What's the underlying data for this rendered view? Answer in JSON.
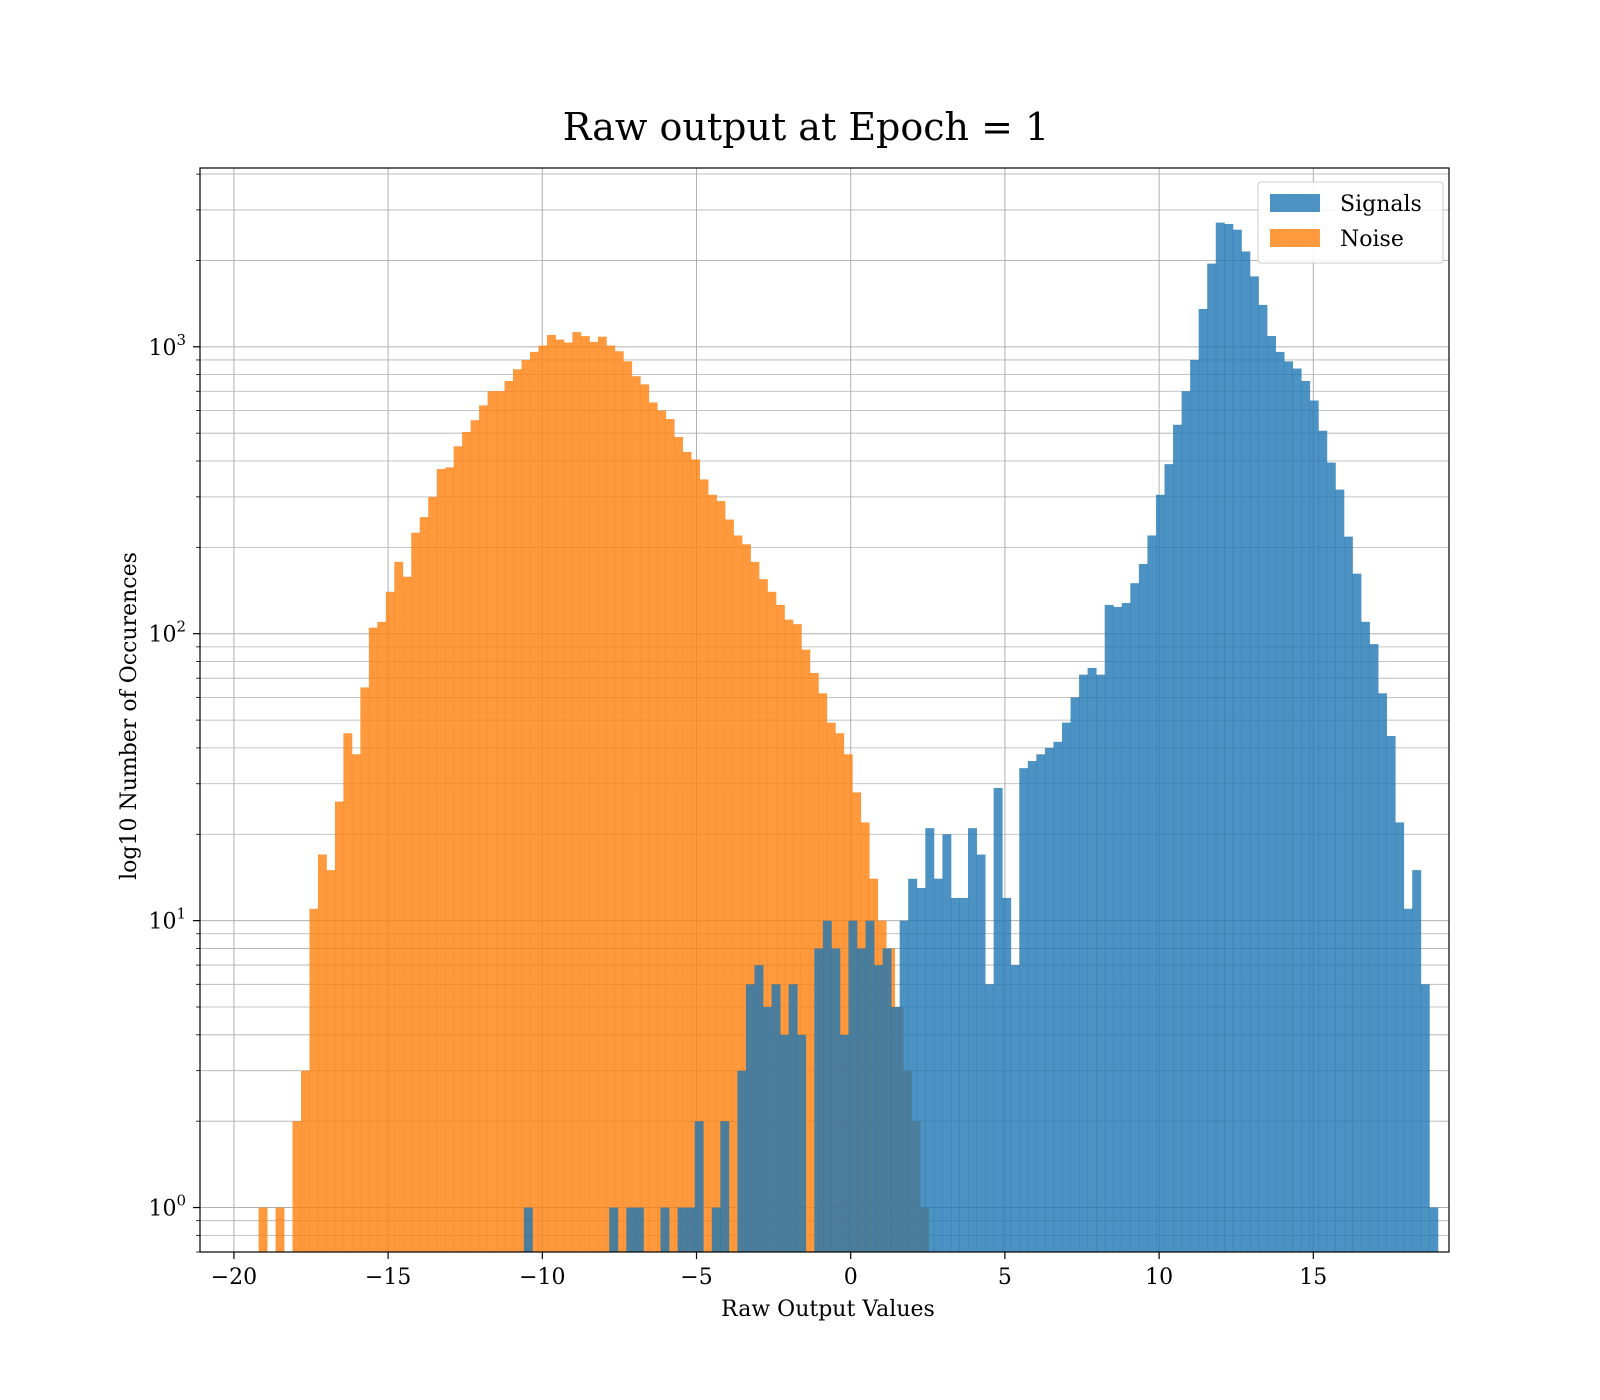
{
  "chart_data": {
    "type": "histogram",
    "title": "Raw output at Epoch = 1",
    "xlabel": "Raw Output Values",
    "ylabel": "log10 Number of Occurences",
    "yscale": "log",
    "xlim": [
      -21.1,
      19.4
    ],
    "ylim": [
      0.7,
      4200
    ],
    "x_ticks": [
      -20,
      -15,
      -10,
      -5,
      0,
      5,
      10,
      15
    ],
    "x_tick_labels": [
      "−20",
      "−15",
      "−10",
      "−5",
      "0",
      "5",
      "10",
      "15"
    ],
    "y_ticks": [
      {
        "value": 1,
        "base": "10",
        "exp": "0"
      },
      {
        "value": 10,
        "base": "10",
        "exp": "1"
      },
      {
        "value": 100,
        "base": "10",
        "exp": "2"
      },
      {
        "value": 1000,
        "base": "10",
        "exp": "3"
      }
    ],
    "grid": true,
    "legend_position": "top-right",
    "colors": {
      "signals": "#1f77b4",
      "noise": "#ff7f0e"
    },
    "series": [
      {
        "name": "Noise",
        "color": "#ff7f0e",
        "alpha": 0.8,
        "bin_start": -19.2,
        "bin_width": 0.275,
        "counts": [
          1,
          0,
          1,
          0,
          2,
          3,
          11,
          17,
          15,
          26,
          45,
          38,
          65,
          105,
          110,
          140,
          178,
          158,
          225,
          255,
          300,
          375,
          380,
          450,
          505,
          555,
          625,
          700,
          700,
          760,
          835,
          900,
          960,
          1010,
          1100,
          1060,
          1035,
          1125,
          1090,
          1040,
          1085,
          1010,
          965,
          890,
          790,
          740,
          640,
          600,
          560,
          485,
          430,
          405,
          345,
          305,
          290,
          250,
          220,
          205,
          178,
          155,
          140,
          126,
          112,
          108,
          88,
          73,
          62,
          49,
          45,
          38,
          28,
          22,
          14,
          10,
          8,
          5,
          3,
          2,
          1
        ]
      },
      {
        "name": "Signals",
        "color": "#1f77b4",
        "alpha": 0.8,
        "bin_start": -10.6,
        "bin_width": 0.277,
        "counts": [
          1,
          0,
          0,
          0,
          0,
          0,
          0,
          0,
          0,
          0,
          1,
          0,
          1,
          1,
          0,
          0,
          1,
          0,
          1,
          1,
          2,
          0,
          1,
          2,
          0,
          3,
          6,
          7,
          5,
          6,
          4,
          6,
          4,
          0,
          8,
          10,
          8,
          4,
          10,
          8,
          10,
          7,
          8,
          5,
          10,
          14,
          13,
          21,
          14,
          20,
          12,
          12,
          21,
          17,
          6,
          29,
          12,
          7,
          34,
          36,
          38,
          40,
          42,
          49,
          60,
          72,
          76,
          72,
          126,
          124,
          128,
          150,
          175,
          220,
          305,
          390,
          535,
          700,
          900,
          1355,
          1950,
          2710,
          2680,
          2560,
          2150,
          1760,
          1400,
          1090,
          960,
          890,
          840,
          760,
          650,
          510,
          395,
          318,
          218,
          162,
          110,
          92,
          62,
          44,
          22,
          11,
          15,
          6,
          1
        ]
      }
    ]
  }
}
